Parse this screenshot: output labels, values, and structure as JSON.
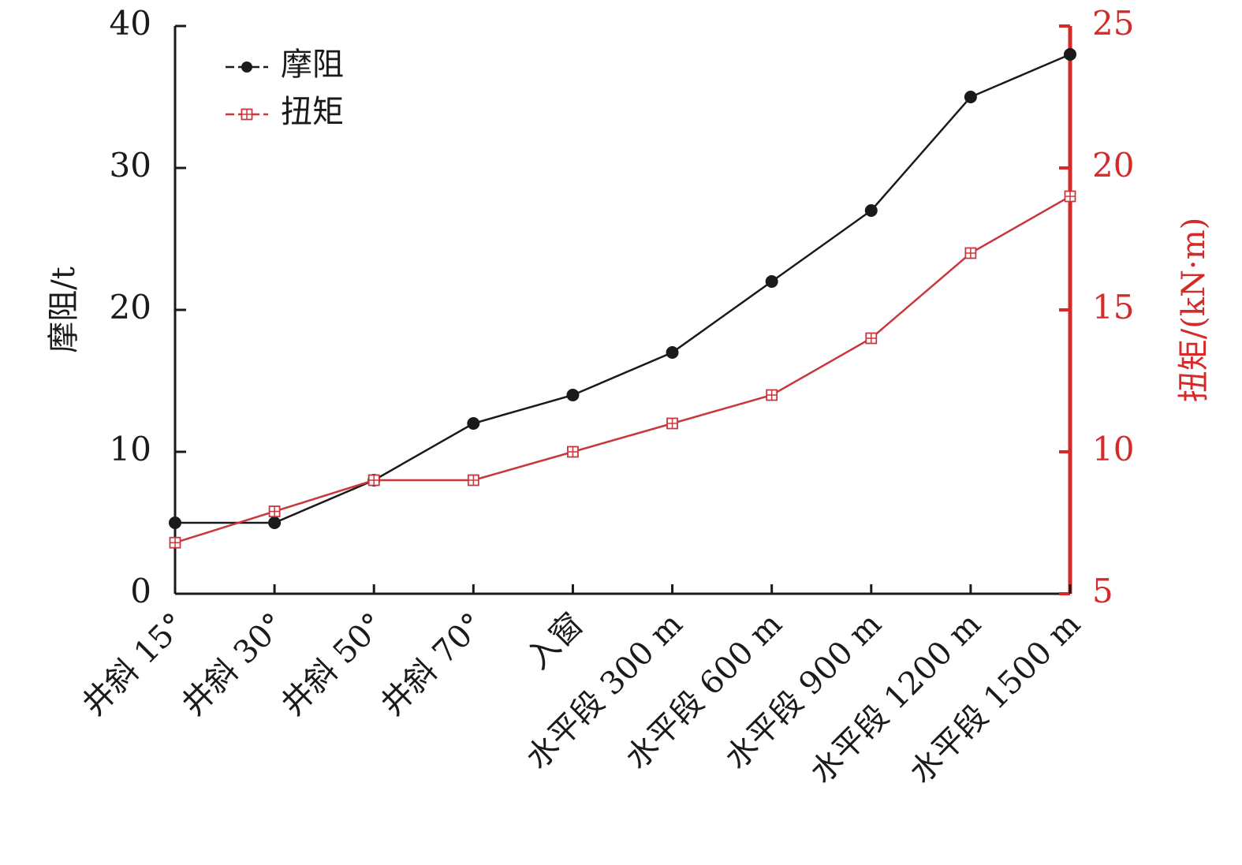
{
  "chart_data": {
    "type": "line",
    "categories": [
      "井斜 15°",
      "井斜 30°",
      "井斜 50°",
      "井斜 70°",
      "入窗",
      "水平段 300 m",
      "水平段 600 m",
      "水平段 900 m",
      "水平段 1200 m",
      "水平段 1500 m"
    ],
    "series": [
      {
        "name": "摩阻",
        "axis": "left",
        "color": "#1a1a1a",
        "marker": "filled-circle",
        "values": [
          5,
          5,
          8,
          12,
          14,
          17,
          22,
          27,
          35,
          38
        ]
      },
      {
        "name": "扭矩",
        "axis": "right",
        "color": "#c8373c",
        "marker": "open-square-cross",
        "values": [
          6.8,
          7.9,
          9.0,
          9.0,
          10.0,
          11.0,
          12.0,
          14.0,
          17.0,
          19.0
        ]
      }
    ],
    "y_left": {
      "label": "摩阻/t",
      "lim": [
        0,
        40
      ],
      "ticks": [
        0,
        10,
        20,
        30,
        40
      ]
    },
    "y_right": {
      "label": "扭矩/(kN·m)",
      "lim": [
        5,
        25
      ],
      "ticks": [
        5,
        10,
        15,
        20,
        25
      ],
      "color": "#d42a2a"
    },
    "legend": {
      "position": "top-left"
    },
    "grid": false
  }
}
